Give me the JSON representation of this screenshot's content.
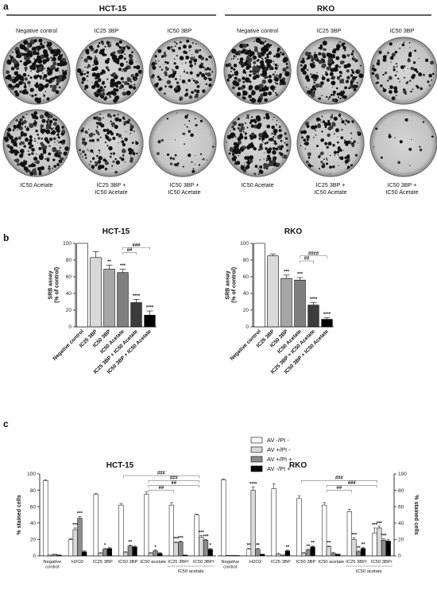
{
  "panel_a": {
    "label": "a",
    "groups": [
      {
        "name": "HCT-15",
        "top_labels": [
          "Negative control",
          "IC25 3BP",
          "IC50 3BP"
        ],
        "bottom_labels": [
          [
            "IC50 Acetate"
          ],
          [
            "IC25 3BP +",
            "IC50 Acetate"
          ],
          [
            "IC50 3BP +",
            "IC50 Acetate"
          ]
        ]
      },
      {
        "name": "RKO",
        "top_labels": [
          "Negative control",
          "IC25 3BP",
          "IC50 3BP"
        ],
        "bottom_labels": [
          [
            "IC50 Acetate"
          ],
          [
            "IC25 3BP +",
            "IC50 Acetate"
          ],
          [
            "IC50 3BP +",
            "IC50 Acetate"
          ]
        ]
      }
    ]
  },
  "panel_b": {
    "label": "b"
  },
  "panel_c": {
    "label": "c"
  },
  "chart_data": [
    {
      "type": "bar",
      "title": "HCT-15",
      "ylabel": "SRB assay\n(% of control)",
      "ylim": [
        0,
        100
      ],
      "yticks": [
        0,
        20,
        40,
        60,
        80,
        100
      ],
      "categories": [
        "Negative control",
        "IC25 3BP",
        "IC50 3BP",
        "IC50 Acetate",
        "IC25 3BP + IC50 Acetate",
        "IC50 3BP + IC50 Acetate"
      ],
      "values": [
        100,
        83,
        69,
        65,
        29,
        14
      ],
      "errors": [
        0,
        7,
        5,
        4,
        4,
        5
      ],
      "colors": [
        "#ffffff",
        "#d9d9d9",
        "#a6a6a6",
        "#7f7f7f",
        "#3c3c3c",
        "#000000"
      ],
      "annotations": [
        "",
        "",
        "**",
        "***",
        "****",
        "****"
      ],
      "brackets": [
        {
          "from": 3,
          "to": 4,
          "label": "##"
        },
        {
          "from": 3,
          "to": 5,
          "label": "###"
        }
      ]
    },
    {
      "type": "bar",
      "title": "RKO",
      "ylabel": "SRB assay\n(% of control)",
      "ylim": [
        0,
        100
      ],
      "yticks": [
        0,
        20,
        40,
        60,
        80,
        100
      ],
      "categories": [
        "Negative control",
        "IC25 3BP",
        "IC50 3BP",
        "IC50 Acetate",
        "IC25 3BP + IC50 Acetate",
        "IC50 3BP + IC50 Acetate"
      ],
      "values": [
        100,
        85,
        58,
        56,
        26,
        9
      ],
      "errors": [
        0,
        2,
        4,
        3,
        3,
        2
      ],
      "colors": [
        "#ffffff",
        "#d9d9d9",
        "#a6a6a6",
        "#7f7f7f",
        "#3c3c3c",
        "#000000"
      ],
      "annotations": [
        "",
        "",
        "***",
        "***",
        "****",
        "****"
      ],
      "brackets": [
        {
          "from": 3,
          "to": 4,
          "label": "##"
        },
        {
          "from": 3,
          "to": 5,
          "label": "####"
        }
      ]
    },
    {
      "type": "bar",
      "title": "HCT-15",
      "ylabel": "% stained cells",
      "ylim": [
        0,
        100
      ],
      "yticks": [
        0,
        20,
        40,
        60,
        80,
        100
      ],
      "categories": [
        "Negative\ncontrol",
        "H2O2",
        "IC25 3BP",
        "IC50 3BP",
        "IC50 acetate",
        "IC25 3BP/",
        "IC50 3BP/"
      ],
      "group_note": "IC50 acetate",
      "series": [
        {
          "name": "AV -/PI -",
          "color": "#ffffff",
          "values": [
            92,
            20,
            75,
            62,
            75,
            62,
            50
          ],
          "errors": [
            1,
            1,
            1,
            2,
            3,
            3,
            1
          ],
          "annotations": [
            "",
            "",
            "",
            "",
            "",
            "",
            ""
          ]
        },
        {
          "name": "AV +/PI -",
          "color": "#d9d9d9",
          "values": [
            1,
            32,
            3,
            4,
            3,
            16,
            23
          ],
          "errors": [
            0,
            2,
            1,
            1,
            1,
            1,
            2
          ],
          "annotations": [
            "",
            "***",
            "",
            "",
            "",
            "***",
            "***"
          ]
        },
        {
          "name": "AV +/PI +",
          "color": "#8c8c8c",
          "values": [
            2,
            46,
            8,
            12,
            6,
            17,
            19
          ],
          "errors": [
            0,
            2,
            1,
            1,
            1,
            1,
            1
          ],
          "annotations": [
            "",
            "***",
            "*",
            "**",
            "*",
            "***",
            "***"
          ]
        },
        {
          "name": "AV -/PI +",
          "color": "#000000",
          "values": [
            1,
            5,
            9,
            11,
            3,
            1,
            8
          ],
          "errors": [
            0,
            1,
            1,
            1,
            1,
            0,
            1
          ],
          "annotations": [
            "",
            "",
            "",
            "",
            "",
            "",
            "*"
          ]
        }
      ],
      "brackets": [
        {
          "from": 4,
          "to": 5,
          "label": "##"
        },
        {
          "from": 4,
          "to": 6,
          "label": "##"
        },
        {
          "from": 4,
          "to": 6,
          "label": "###"
        },
        {
          "from": 3,
          "to": 6,
          "label": "###"
        }
      ]
    },
    {
      "type": "bar",
      "title": "RKO",
      "ylabel": "% stained cells",
      "ylim": [
        0,
        100
      ],
      "yticks": [
        0,
        20,
        40,
        60,
        80,
        100
      ],
      "categories": [
        "Negative\ncontrol",
        "H2O2",
        "IC25 3BP",
        "IC50 3BP",
        "IC50 acetate",
        "IC25 3BP/",
        "IC50 3BP/"
      ],
      "group_note": "IC50 acetate",
      "series": [
        {
          "name": "AV -/PI -",
          "color": "#ffffff",
          "values": [
            93,
            8,
            82,
            70,
            62,
            54,
            28
          ],
          "errors": [
            1,
            1,
            6,
            3,
            3,
            3,
            6
          ],
          "annotations": [
            "",
            "**",
            "",
            "",
            "",
            "",
            "***"
          ]
        },
        {
          "name": "AV +/PI -",
          "color": "#d9d9d9",
          "values": [
            0.5,
            80,
            2,
            3,
            11,
            20,
            34
          ],
          "errors": [
            0,
            4,
            1,
            1,
            1,
            2,
            2
          ],
          "annotations": [
            "",
            "****",
            "",
            "",
            "**",
            "***",
            "***"
          ]
        },
        {
          "name": "AV +/PI +",
          "color": "#8c8c8c",
          "values": [
            0.5,
            8,
            1,
            7,
            3,
            5,
            19
          ],
          "errors": [
            0,
            1,
            0,
            1,
            1,
            1,
            2
          ],
          "annotations": [
            "",
            "**",
            "",
            "**",
            "",
            "**",
            "***"
          ]
        },
        {
          "name": "AV -/PI +",
          "color": "#000000",
          "values": [
            0.5,
            2,
            6,
            11,
            2,
            9,
            18
          ],
          "errors": [
            0,
            0,
            1,
            1,
            0,
            1,
            2
          ],
          "annotations": [
            "",
            "",
            "**",
            "**",
            "",
            "**",
            ""
          ]
        }
      ],
      "brackets": [
        {
          "from": 4,
          "to": 5,
          "label": "##"
        },
        {
          "from": 4,
          "to": 6,
          "label": "###"
        },
        {
          "from": 3,
          "to": 6,
          "label": "###"
        }
      ]
    }
  ]
}
